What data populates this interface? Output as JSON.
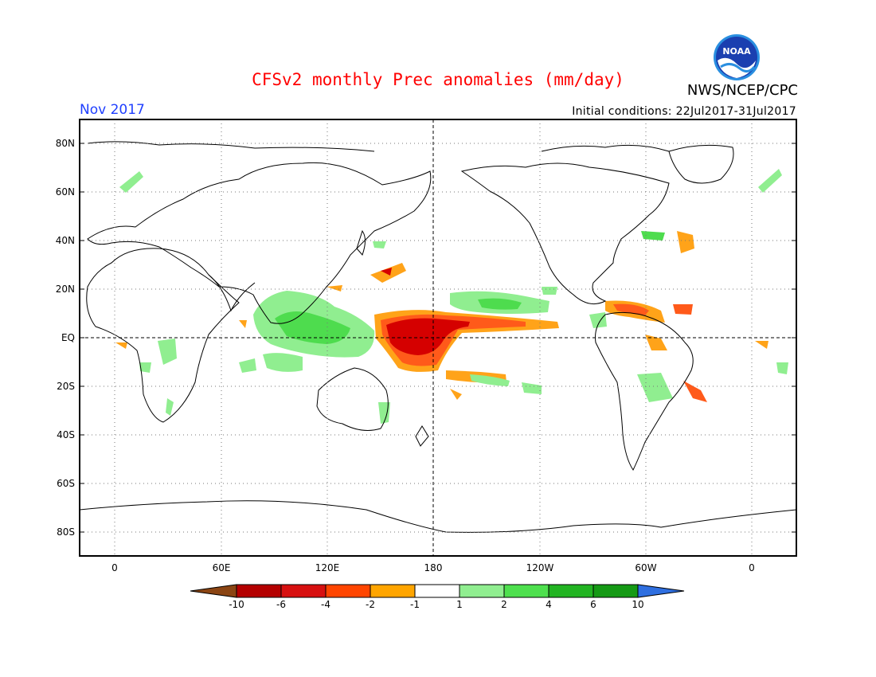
{
  "title": "CFSv2 monthly Prec anomalies (mm/day)",
  "forecast_month": "Nov 2017",
  "initial_conditions": "Initial conditions: 22Jul2017-31Jul2017",
  "agency": "NWS/NCEP/CPC",
  "logo_text": "NOAA",
  "lat_labels": [
    "80N",
    "60N",
    "40N",
    "20N",
    "EQ",
    "20S",
    "40S",
    "60S",
    "80S"
  ],
  "lon_labels": [
    "0",
    "60E",
    "120E",
    "180",
    "120W",
    "60W",
    "0"
  ],
  "colorbar": {
    "labels": [
      "-10",
      "-6",
      "-4",
      "-2",
      "-1",
      "1",
      "2",
      "4",
      "6",
      "10"
    ],
    "colors": [
      "#8b4513",
      "#b40000",
      "#d71010",
      "#ff4500",
      "#ffa500",
      "#ffffff",
      "#90ee90",
      "#4ee04e",
      "#22b422",
      "#159a15",
      "#2f6fe0"
    ]
  },
  "colors": {
    "title": "#ff0000",
    "month": "#1f3fff",
    "dry_strong": "#d50000",
    "dry_medium": "#ff5a1a",
    "dry_light": "#ffa319",
    "wet_light": "#90ee90",
    "wet_medium": "#4edc4e"
  }
}
